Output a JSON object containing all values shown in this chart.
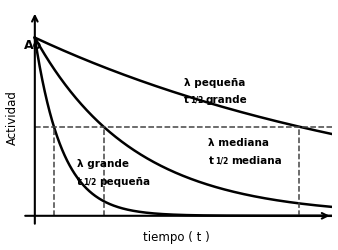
{
  "title": "",
  "xlabel": "tiempo ( t )",
  "ylabel": "Actividad",
  "A0_label": "Ao",
  "background_color": "#ffffff",
  "curve1_lambda": 0.13,
  "curve2_lambda": 0.5,
  "curve3_lambda": 1.8,
  "half_level": 0.5,
  "x_max": 6.0,
  "text_color": "#000000",
  "curve_color": "#000000",
  "dashed_color": "#444444",
  "lw_curve": 1.8,
  "lw_dash": 1.1,
  "c1_label1": "λ pequeña",
  "c1_label2_pre": "t",
  "c1_label2_sub": "1/2",
  "c1_label2_post": "   grande",
  "c2_label1": "λ mediana",
  "c2_label2_pre": "t",
  "c2_label2_sub": "1/2",
  "c2_label2_post": "   mediana",
  "c3_label1": "λ grande",
  "c3_label2_pre": "t",
  "c3_label2_sub": "1/2",
  "c3_label2_post": "   pequeña"
}
